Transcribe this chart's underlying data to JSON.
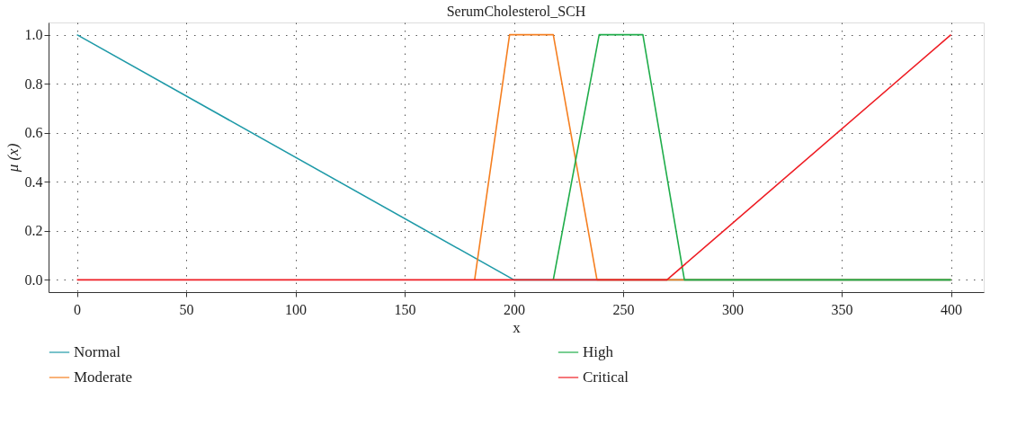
{
  "chart_data": {
    "type": "line",
    "title": "SerumCholesterol_SCH",
    "xlabel": "x",
    "ylabel": "μ (x)",
    "series": [
      {
        "name": "Normal",
        "color": "#1f9aa8",
        "x": [
          0,
          200,
          400
        ],
        "values": [
          1,
          0,
          0
        ]
      },
      {
        "name": "Moderate",
        "color": "#f57f20",
        "x": [
          182,
          198,
          218,
          238,
          400
        ],
        "values": [
          0,
          1,
          1,
          0,
          0
        ]
      },
      {
        "name": "High",
        "color": "#1fad4a",
        "x": [
          218,
          239,
          259,
          278,
          400
        ],
        "values": [
          0,
          1,
          1,
          0,
          0
        ]
      },
      {
        "name": "Critical",
        "color": "#ee1d24",
        "x": [
          0,
          270,
          400
        ],
        "values": [
          0,
          0,
          1
        ]
      }
    ],
    "xlim": [
      -13,
      415
    ],
    "xticks": [
      0,
      50,
      100,
      150,
      200,
      250,
      300,
      350,
      400
    ],
    "ylim": [
      -0.05,
      1.05
    ],
    "yticks": [
      {
        "value": 0,
        "label": "0.0"
      },
      0.2,
      0.4,
      0.6,
      0.8,
      {
        "value": 1,
        "label": "1.0"
      }
    ],
    "grid": true,
    "legend": "bottom",
    "line_style": "solid",
    "marker": "none"
  }
}
